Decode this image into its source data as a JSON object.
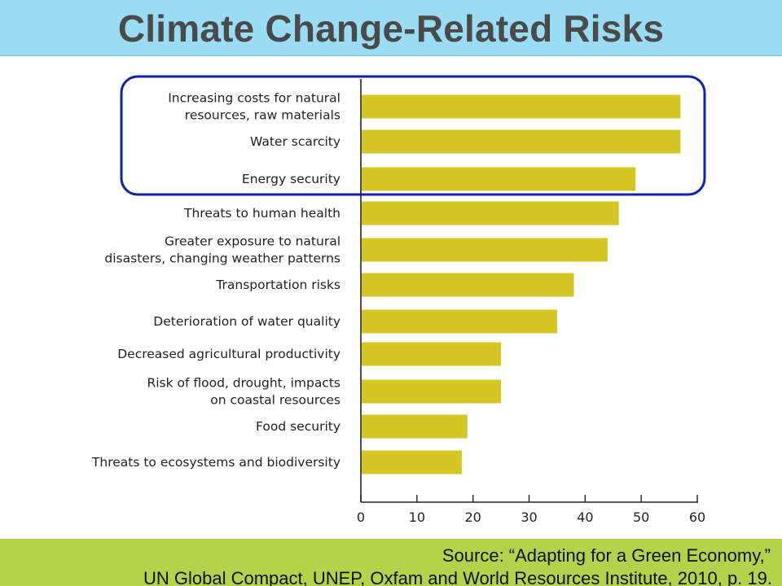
{
  "header": {
    "title": "Climate Change-Related Risks"
  },
  "footer": {
    "source_line1": "Source: “Adapting for a Green Economy,”",
    "source_line2": "UN Global Compact, UNEP, Oxfam and World Resources Institute, 2010, p. 19."
  },
  "colors": {
    "title_bar": "#99dcf3",
    "footer_bar": "#b3d44a",
    "bar_fill": "#d4c724",
    "highlight_outline": "#1020b0"
  },
  "chart_data": {
    "type": "bar",
    "orientation": "horizontal",
    "categories": [
      [
        "Increasing costs for natural",
        "resources, raw materials"
      ],
      [
        "Water scarcity"
      ],
      [
        "Energy security"
      ],
      [
        "Threats to human health"
      ],
      [
        "Greater exposure to natural",
        "disasters, changing weather patterns"
      ],
      [
        "Transportation risks"
      ],
      [
        "Deterioration of water quality"
      ],
      [
        "Decreased agricultural productivity"
      ],
      [
        "Risk of flood, drought, impacts",
        "on coastal resources"
      ],
      [
        "Food security"
      ],
      [
        "Threats to ecosystems and biodiversity"
      ]
    ],
    "values": [
      57,
      57,
      49,
      46,
      44,
      38,
      35,
      25,
      25,
      19,
      18
    ],
    "xlim": [
      0,
      60
    ],
    "xticks": [
      0,
      10,
      20,
      30,
      40,
      50,
      60
    ],
    "xlabel": "",
    "ylabel": "",
    "grid": false,
    "highlight": {
      "from_index": 0,
      "to_index": 2,
      "shape": "rounded-rectangle"
    }
  }
}
